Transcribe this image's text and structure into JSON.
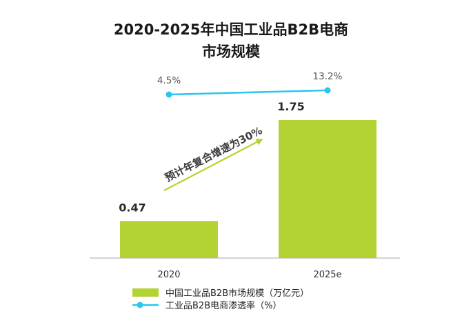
{
  "chart_data": {
    "type": "bar",
    "title_line1": "2020-2025年中国工业品B2B电商",
    "title_line2": "市场规模",
    "categories": [
      "2020",
      "2025e"
    ],
    "series": [
      {
        "name": "中国工业品B2B市场规模（万亿元）",
        "type": "bar",
        "values": [
          0.47,
          1.75
        ],
        "labels": [
          "0.47",
          "1.75"
        ],
        "color": "#b3d334"
      },
      {
        "name": "工业品B2B电商渗透率（%）",
        "type": "line",
        "values": [
          4.5,
          13.2
        ],
        "labels": [
          "4.5%",
          "13.2%"
        ],
        "color": "#29c6ef"
      }
    ],
    "annotation": "预计年复合增速为30%",
    "legend_position": "bottom",
    "grid": false
  }
}
